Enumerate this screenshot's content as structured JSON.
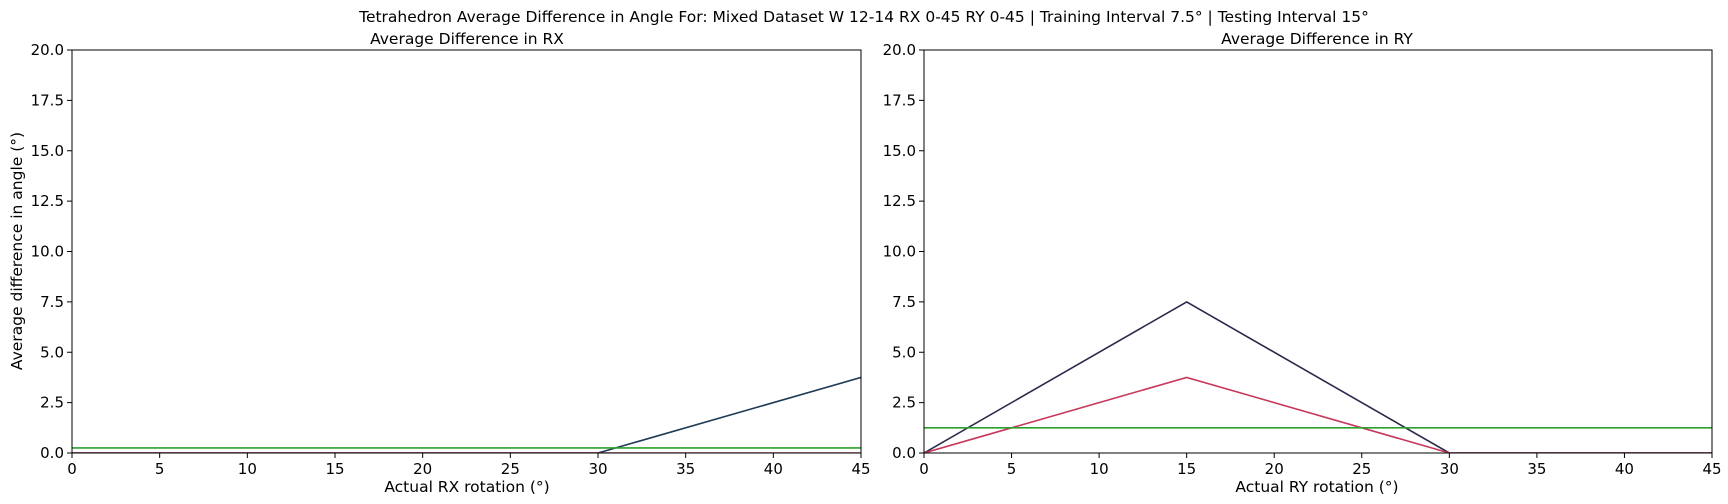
{
  "figure": {
    "suptitle": "Tetrahedron Average Difference in Angle For: Mixed Dataset W 12-14 RX 0-45 RY 0-45 | Training Interval 7.5° | Testing Interval 15°"
  },
  "chart_data": [
    {
      "type": "line",
      "title": "Average Difference in RX",
      "xlabel": "Actual RX rotation (°)",
      "ylabel": "Average difference in angle (°)",
      "xlim": [
        0,
        45
      ],
      "ylim": [
        0,
        20
      ],
      "xticks": [
        0,
        5,
        10,
        15,
        20,
        25,
        30,
        35,
        40,
        45
      ],
      "yticks": [
        0,
        2.5,
        5,
        7.5,
        10,
        12.5,
        15,
        17.5,
        20
      ],
      "xtick_labels": [
        "0",
        "5",
        "10",
        "15",
        "20",
        "25",
        "30",
        "35",
        "40",
        "45"
      ],
      "ytick_labels": [
        "0.0",
        "2.5",
        "5.0",
        "7.5",
        "10.0",
        "12.5",
        "15.0",
        "17.5",
        "20.0"
      ],
      "grid": false,
      "series": [
        {
          "color": "#1f3b57",
          "x": [
            0,
            15,
            30,
            45
          ],
          "y": [
            0,
            0,
            0,
            3.75
          ]
        },
        {
          "color": "#c8375a",
          "x": [
            0,
            15,
            30,
            45
          ],
          "y": [
            0,
            0,
            0,
            0
          ]
        },
        {
          "color": "#2ca02c",
          "x": [
            0,
            45
          ],
          "y": [
            0.25,
            0.25
          ]
        }
      ]
    },
    {
      "type": "line",
      "title": "Average Difference in RY",
      "xlabel": "Actual RY rotation (°)",
      "ylabel": "",
      "xlim": [
        0,
        45
      ],
      "ylim": [
        0,
        20
      ],
      "xticks": [
        0,
        5,
        10,
        15,
        20,
        25,
        30,
        35,
        40,
        45
      ],
      "yticks": [
        0,
        2.5,
        5,
        7.5,
        10,
        12.5,
        15,
        17.5,
        20
      ],
      "xtick_labels": [
        "0",
        "5",
        "10",
        "15",
        "20",
        "25",
        "30",
        "35",
        "40",
        "45"
      ],
      "ytick_labels": [
        "0.0",
        "2.5",
        "5.0",
        "7.5",
        "10.0",
        "12.5",
        "15.0",
        "17.5",
        "20.0"
      ],
      "grid": false,
      "series": [
        {
          "color": "#2b2a4c",
          "x": [
            0,
            15,
            30,
            45
          ],
          "y": [
            0,
            7.5,
            0,
            0
          ]
        },
        {
          "color": "#c8375a",
          "x": [
            0,
            15,
            30,
            45
          ],
          "y": [
            0,
            3.75,
            0,
            0
          ]
        },
        {
          "color": "#2ca02c",
          "x": [
            0,
            45
          ],
          "y": [
            1.25,
            1.25
          ]
        }
      ]
    }
  ]
}
